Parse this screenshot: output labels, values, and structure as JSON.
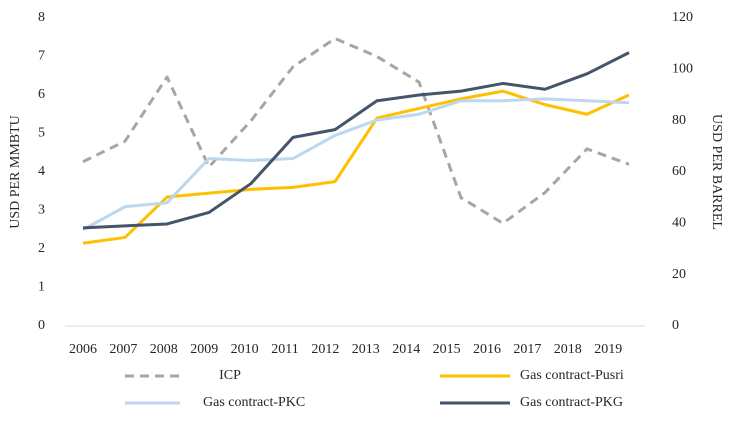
{
  "chart_data": {
    "type": "line",
    "categories": [
      "2006",
      "2007",
      "2008",
      "2009",
      "2010",
      "2011",
      "2012",
      "2013",
      "2014",
      "2015",
      "2016",
      "2017",
      "2018",
      "2019"
    ],
    "ylabel": "USD PER MMBTU",
    "y2label": "USD PER BARREL",
    "ylim": [
      0,
      8
    ],
    "yticks": [
      0,
      1,
      2,
      3,
      4,
      5,
      6,
      7,
      8
    ],
    "y2lim": [
      0,
      120
    ],
    "y2ticks": [
      0,
      20,
      40,
      60,
      80,
      100,
      120
    ],
    "legend": "bottom",
    "series": [
      {
        "name": "ICP",
        "color": "#a6a6a6",
        "line_style": "dashed",
        "axis": "y2",
        "values": [
          64,
          72,
          97,
          62,
          80,
          101,
          112,
          105,
          95,
          50,
          40,
          52,
          69,
          63
        ]
      },
      {
        "name": "Gas contract-Pusri",
        "color": "#ffc000",
        "line_style": "solid",
        "values": [
          2.15,
          2.3,
          3.35,
          3.45,
          3.55,
          3.6,
          3.75,
          5.4,
          5.65,
          5.9,
          6.1,
          5.75,
          5.5,
          6.0
        ]
      },
      {
        "name": "Gas contract-PKC",
        "color": "#bdd7ee",
        "line_style": "solid",
        "values": [
          2.5,
          3.1,
          3.2,
          4.35,
          4.3,
          4.35,
          4.95,
          5.35,
          5.5,
          5.85,
          5.85,
          5.9,
          5.85,
          5.8
        ]
      },
      {
        "name": "Gas contract-PKG",
        "color": "#44546a",
        "line_style": "solid",
        "values": [
          2.55,
          2.6,
          2.65,
          2.95,
          3.7,
          4.9,
          5.1,
          5.85,
          6.0,
          6.1,
          6.3,
          6.15,
          6.55,
          7.1
        ]
      }
    ]
  }
}
